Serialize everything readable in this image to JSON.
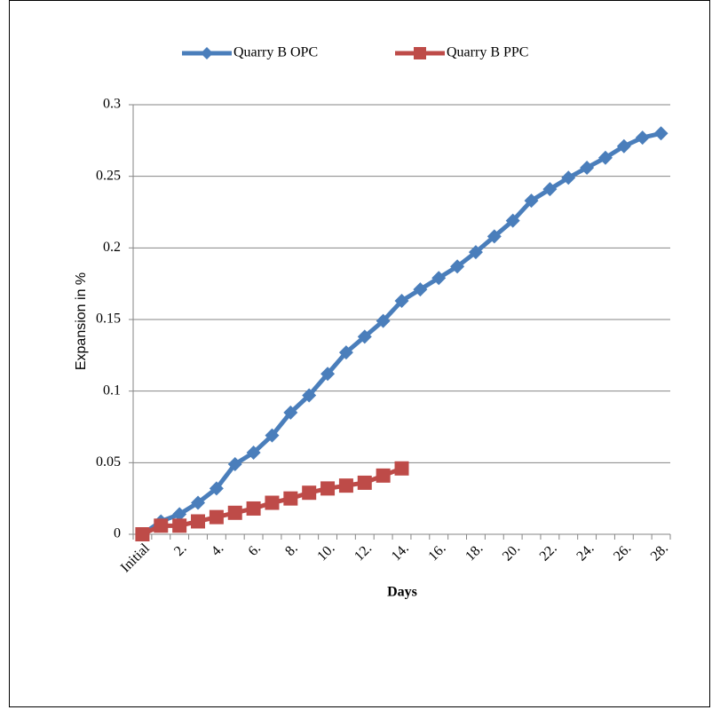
{
  "chart_data": {
    "type": "line",
    "x_label": "Days",
    "y_label": "Expansion in %",
    "categories": [
      "Initial",
      null,
      "2.",
      null,
      "4.",
      null,
      "6.",
      null,
      "8.",
      null,
      "10.",
      null,
      "12.",
      null,
      "14.",
      null,
      "16.",
      null,
      "18.",
      null,
      "20.",
      null,
      "22.",
      null,
      "24.",
      null,
      "26.",
      null,
      "28."
    ],
    "series": [
      {
        "name": "Quarry B OPC",
        "color": "#4a7ebb",
        "marker": "diamond",
        "values": [
          0,
          0.009,
          0.014,
          0.022,
          0.032,
          0.049,
          0.057,
          0.069,
          0.085,
          0.097,
          0.112,
          0.127,
          0.138,
          0.149,
          0.163,
          0.171,
          0.179,
          0.187,
          0.197,
          0.208,
          0.219,
          0.233,
          0.241,
          0.249,
          0.256,
          0.263,
          0.271,
          0.277,
          0.28
        ]
      },
      {
        "name": "Quarry B PPC",
        "color": "#be4b48",
        "marker": "square",
        "values": [
          0,
          0.006,
          0.006,
          0.009,
          0.012,
          0.015,
          0.018,
          0.022,
          0.025,
          0.029,
          0.032,
          0.034,
          0.036,
          0.041,
          0.046,
          null,
          null,
          null,
          null,
          null,
          null,
          null,
          null,
          null,
          null,
          null,
          null,
          null,
          null
        ]
      }
    ],
    "ylim": [
      0,
      0.3
    ],
    "yticks": [
      0,
      0.05,
      0.1,
      0.15,
      0.2,
      0.25,
      0.3
    ],
    "grid": true,
    "legend": "top"
  }
}
